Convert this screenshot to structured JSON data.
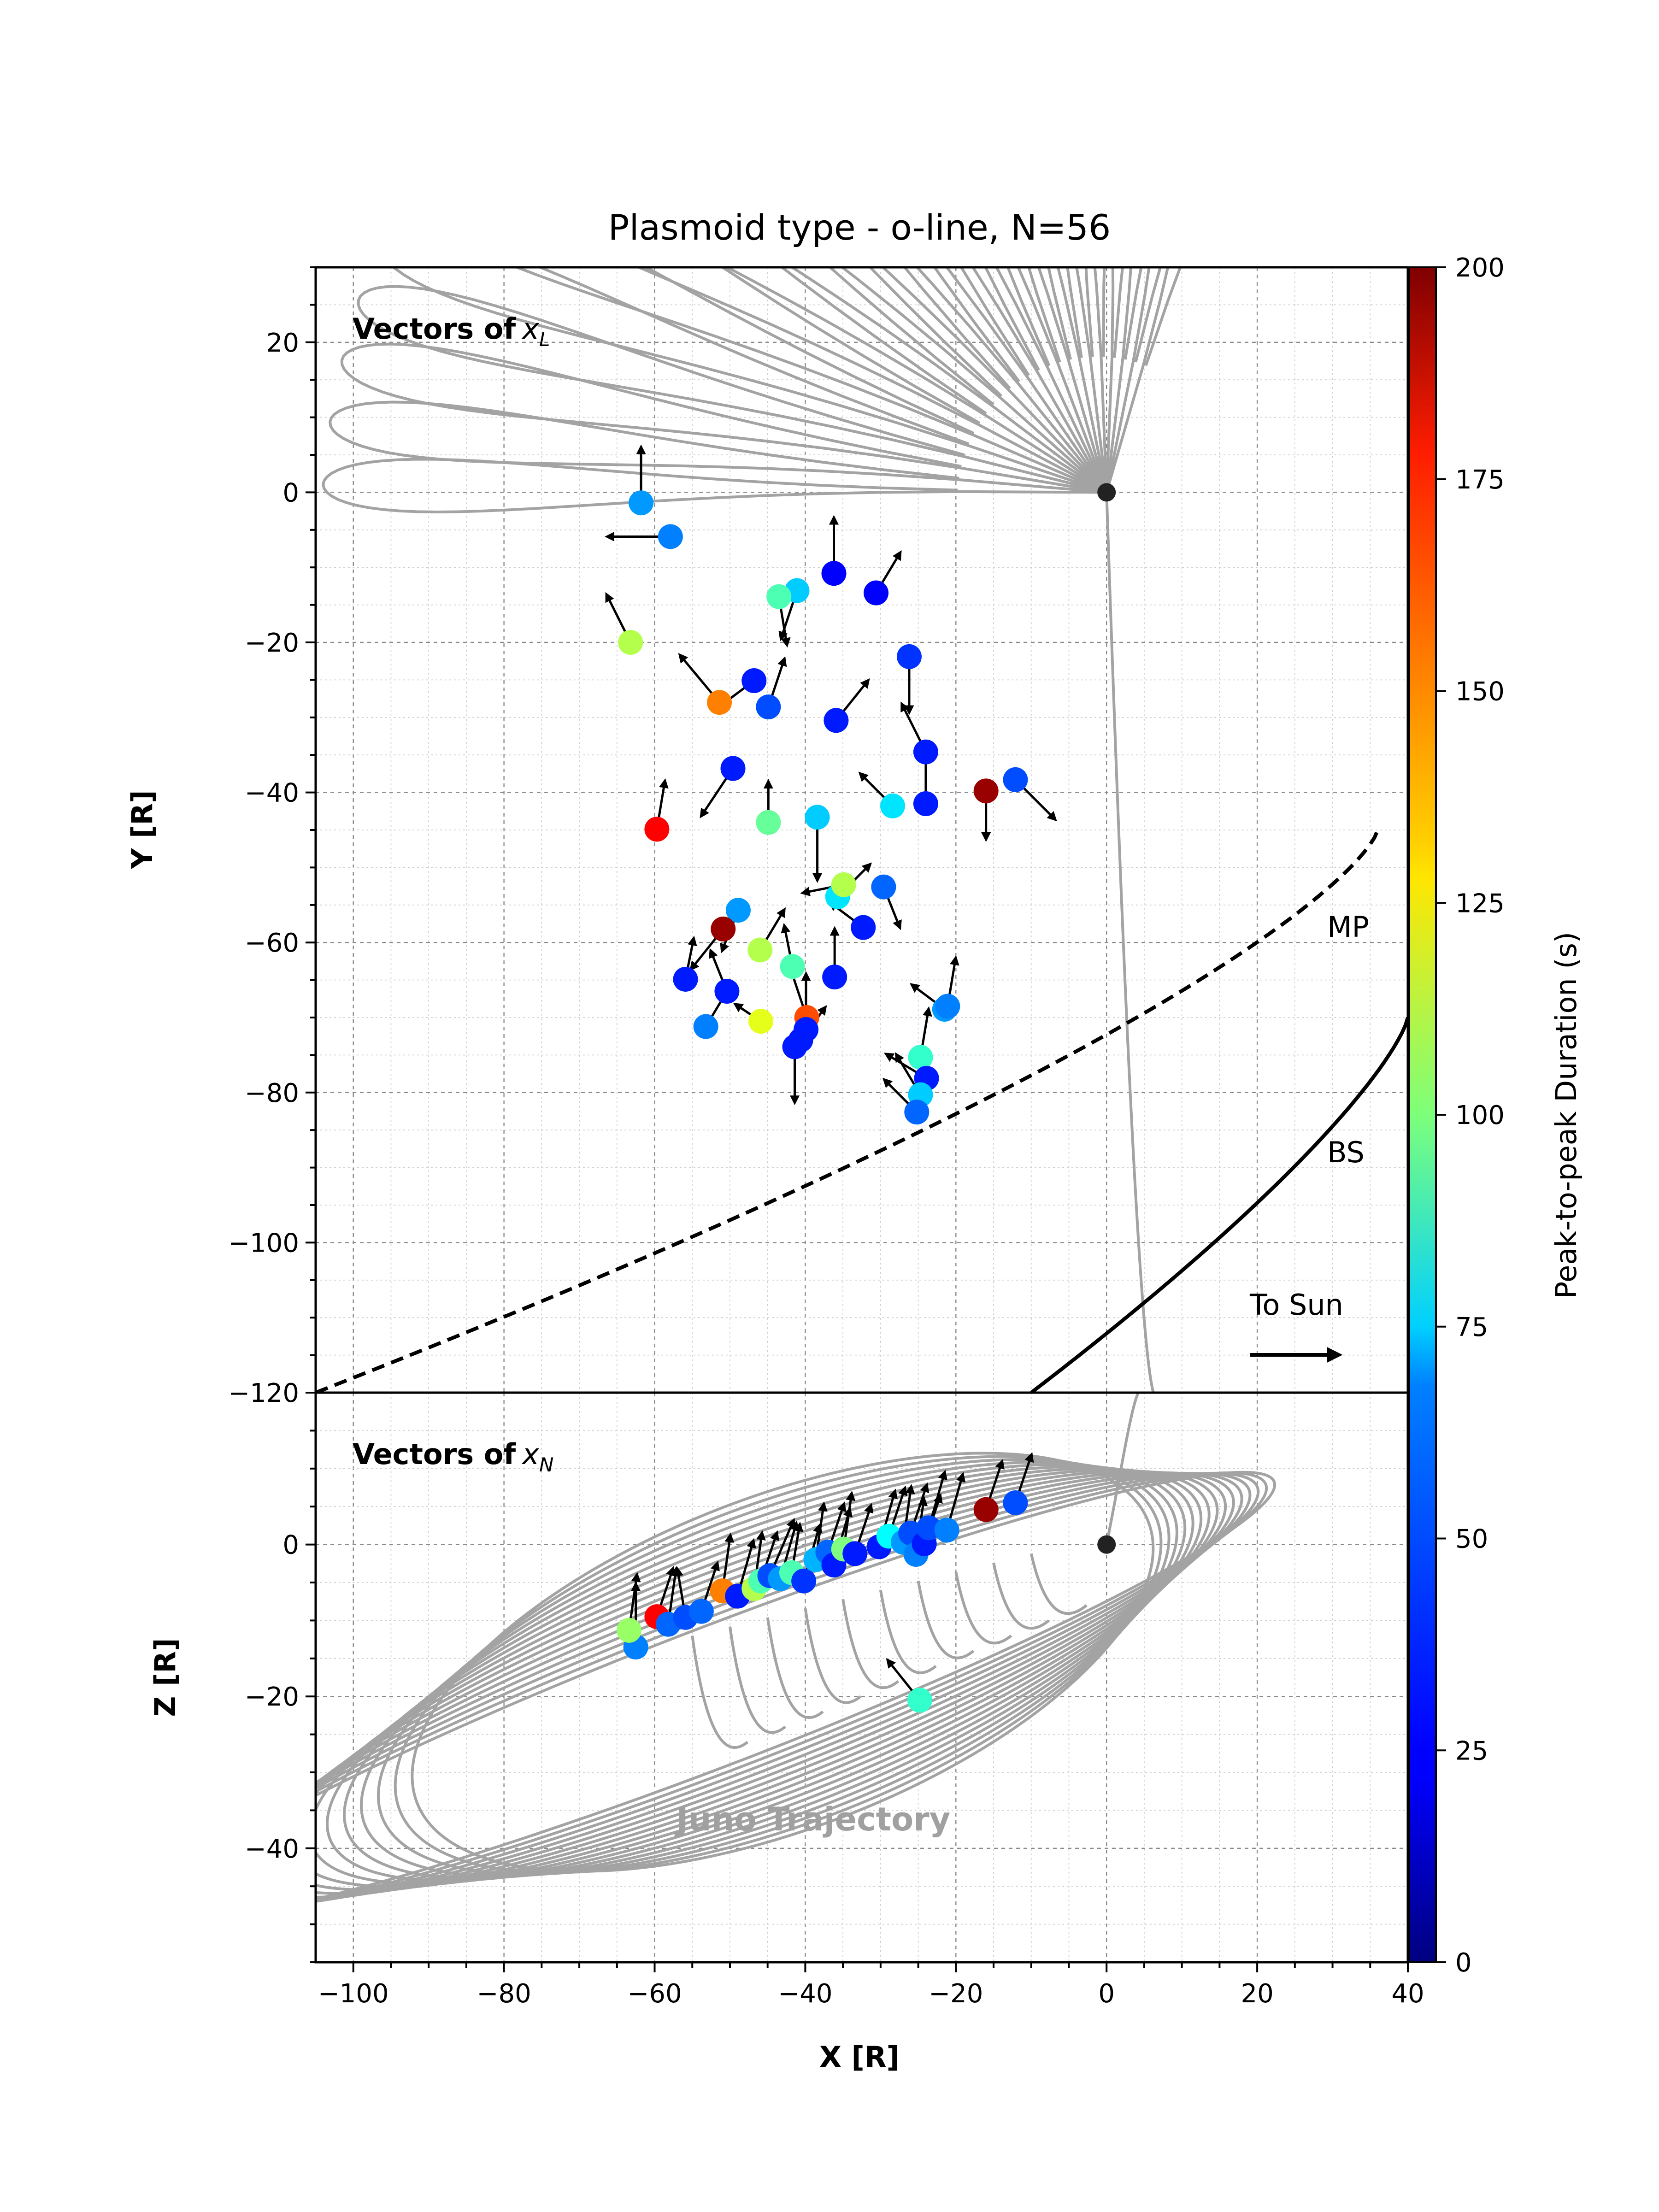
{
  "chart_data": {
    "type": "scatter",
    "title": "Plasmoid type - o-line, N=56",
    "xlabel": "X [R]",
    "x_ticks": [
      "−100",
      "−80",
      "−60",
      "−40",
      "−20",
      "0",
      "20",
      "40"
    ],
    "xlim": [
      -105,
      40
    ],
    "colorbar": {
      "label": "Peak-to-peak Duration (s)",
      "colormap": "jet",
      "range": [
        0,
        200
      ],
      "ticks": [
        "0",
        "25",
        "50",
        "75",
        "100",
        "125",
        "150",
        "175",
        "200"
      ]
    },
    "panels": [
      {
        "name": "top",
        "ylabel": "Y [R]",
        "ylim": [
          -120,
          30
        ],
        "y_ticks": [
          "−120",
          "−100",
          "−80",
          "−60",
          "−40",
          "−20",
          "0",
          "20"
        ],
        "panel_label": "Vectors of",
        "panel_label_symbol": "x",
        "panel_label_sub": "L",
        "annotations": [
          "MP",
          "BS",
          "To Sun"
        ],
        "points": [
          {
            "x": -61.8,
            "y": -1.4,
            "duration": 55,
            "u": 0,
            "v": 7
          },
          {
            "x": -57.9,
            "y": -5.9,
            "duration": 50,
            "u": -8,
            "v": 0
          },
          {
            "x": -36.2,
            "y": -10.8,
            "duration": 25,
            "u": 0,
            "v": 7
          },
          {
            "x": -30.6,
            "y": -13.4,
            "duration": 25,
            "u": 3,
            "v": 5
          },
          {
            "x": -41.1,
            "y": -13.1,
            "duration": 65,
            "u": -2,
            "v": -6
          },
          {
            "x": -43.5,
            "y": -13.9,
            "duration": 90,
            "u": 1,
            "v": -6
          },
          {
            "x": -63.2,
            "y": -20.0,
            "duration": 110,
            "u": -3,
            "v": 6
          },
          {
            "x": -26.2,
            "y": -21.9,
            "duration": 35,
            "u": 0,
            "v": -7
          },
          {
            "x": -46.8,
            "y": -25.1,
            "duration": 30,
            "u": -4,
            "v": -3
          },
          {
            "x": -51.4,
            "y": -28.0,
            "duration": 150,
            "u": -5,
            "v": 6
          },
          {
            "x": -44.9,
            "y": -28.6,
            "duration": 40,
            "u": 2,
            "v": 6
          },
          {
            "x": -35.9,
            "y": -30.4,
            "duration": 30,
            "u": 4,
            "v": 5
          },
          {
            "x": -24.0,
            "y": -34.6,
            "duration": 30,
            "u": -3,
            "v": 6
          },
          {
            "x": -49.6,
            "y": -36.8,
            "duration": 30,
            "u": -4,
            "v": -6
          },
          {
            "x": -16.0,
            "y": -39.8,
            "duration": 195,
            "u": 0,
            "v": -6
          },
          {
            "x": -12.1,
            "y": -38.3,
            "duration": 40,
            "u": 5,
            "v": -5
          },
          {
            "x": -28.4,
            "y": -41.8,
            "duration": 70,
            "u": -4,
            "v": 4
          },
          {
            "x": -24.0,
            "y": -41.5,
            "duration": 30,
            "u": 0,
            "v": 6
          },
          {
            "x": -59.7,
            "y": -44.9,
            "duration": 175,
            "u": 1,
            "v": 6
          },
          {
            "x": -44.9,
            "y": -44.0,
            "duration": 95,
            "u": 0,
            "v": 5
          },
          {
            "x": -38.4,
            "y": -43.3,
            "duration": 65,
            "u": 0,
            "v": -8
          },
          {
            "x": -35.7,
            "y": -53.9,
            "duration": 70,
            "u": 4,
            "v": 4
          },
          {
            "x": -34.9,
            "y": -52.3,
            "duration": 110,
            "u": -5,
            "v": -1
          },
          {
            "x": -29.6,
            "y": -52.6,
            "duration": 45,
            "u": 2,
            "v": -5
          },
          {
            "x": -48.9,
            "y": -55.7,
            "duration": 55,
            "u": -2,
            "v": -5
          },
          {
            "x": -32.3,
            "y": -58.0,
            "duration": 30,
            "u": -4,
            "v": 3
          },
          {
            "x": -50.9,
            "y": -58.2,
            "duration": 195,
            "u": -4,
            "v": -5
          },
          {
            "x": -46.0,
            "y": -61.0,
            "duration": 110,
            "u": 3,
            "v": 5
          },
          {
            "x": -41.7,
            "y": -63.2,
            "duration": 90,
            "u": -1,
            "v": 5
          },
          {
            "x": -36.1,
            "y": -64.6,
            "duration": 30,
            "u": 0,
            "v": 6
          },
          {
            "x": -55.9,
            "y": -64.9,
            "duration": 30,
            "u": 1,
            "v": 5
          },
          {
            "x": -50.4,
            "y": -66.5,
            "duration": 30,
            "u": -2,
            "v": 5
          },
          {
            "x": -21.5,
            "y": -68.9,
            "duration": 55,
            "u": -4,
            "v": 3
          },
          {
            "x": -21.1,
            "y": -68.5,
            "duration": 50,
            "u": 1,
            "v": 6
          },
          {
            "x": -53.2,
            "y": -71.2,
            "duration": 50,
            "u": 3,
            "v": 5
          },
          {
            "x": -39.8,
            "y": -70.0,
            "duration": 160,
            "u": -2,
            "v": 6
          },
          {
            "x": -45.9,
            "y": -70.5,
            "duration": 120,
            "u": -3,
            "v": 2
          },
          {
            "x": -39.9,
            "y": -71.6,
            "duration": 30,
            "u": 0,
            "v": 7
          },
          {
            "x": -40.6,
            "y": -73.0,
            "duration": 30,
            "u": 3,
            "v": 4
          },
          {
            "x": -41.4,
            "y": -73.9,
            "duration": 30,
            "u": 0,
            "v": -7
          },
          {
            "x": -24.7,
            "y": -75.3,
            "duration": 85,
            "u": 1,
            "v": 6
          },
          {
            "x": -23.9,
            "y": -78.1,
            "duration": 30,
            "u": -5,
            "v": 3
          },
          {
            "x": -24.7,
            "y": -80.3,
            "duration": 65,
            "u": -3,
            "v": 5
          },
          {
            "x": -25.2,
            "y": -82.6,
            "duration": 45,
            "u": -4,
            "v": 4
          }
        ]
      },
      {
        "name": "bottom",
        "ylabel": "Z [R]",
        "ylim": [
          -55,
          20
        ],
        "y_ticks": [
          "−40",
          "−20",
          "0"
        ],
        "panel_label": "Vectors of",
        "panel_label_symbol": "x",
        "panel_label_sub": "N",
        "watermark": "Juno Trajectory",
        "points": [
          {
            "x": -62.5,
            "y": -13.5,
            "duration": 50,
            "u": 0,
            "v": 8
          },
          {
            "x": -63.4,
            "y": -11.3,
            "duration": 105,
            "u": 1,
            "v": 7
          },
          {
            "x": -59.7,
            "y": -9.5,
            "duration": 175,
            "u": 2,
            "v": 6
          },
          {
            "x": -58.2,
            "y": -10.5,
            "duration": 45,
            "u": 1,
            "v": 7
          },
          {
            "x": -55.9,
            "y": -9.6,
            "duration": 40,
            "u": -1,
            "v": 6
          },
          {
            "x": -53.8,
            "y": -8.8,
            "duration": 45,
            "u": 2,
            "v": 6
          },
          {
            "x": -51.0,
            "y": -6.1,
            "duration": 150,
            "u": 1,
            "v": 7
          },
          {
            "x": -49.0,
            "y": -6.8,
            "duration": 30,
            "u": 2,
            "v": 7
          },
          {
            "x": -46.8,
            "y": -5.8,
            "duration": 110,
            "u": 1,
            "v": 7
          },
          {
            "x": -45.9,
            "y": -4.8,
            "duration": 90,
            "u": 2,
            "v": 6
          },
          {
            "x": -44.7,
            "y": -4.1,
            "duration": 40,
            "u": 3,
            "v": 7
          },
          {
            "x": -43.3,
            "y": -4.5,
            "duration": 55,
            "u": 2,
            "v": 7
          },
          {
            "x": -41.8,
            "y": -3.7,
            "duration": 90,
            "u": 1,
            "v": 6
          },
          {
            "x": -40.2,
            "y": -4.8,
            "duration": 35,
            "u": 2,
            "v": 7
          },
          {
            "x": -38.6,
            "y": -2.0,
            "duration": 60,
            "u": 1,
            "v": 7
          },
          {
            "x": -37.0,
            "y": -1.0,
            "duration": 45,
            "u": 2,
            "v": 6
          },
          {
            "x": -36.2,
            "y": -2.7,
            "duration": 30,
            "u": 2,
            "v": 7
          },
          {
            "x": -34.9,
            "y": -0.6,
            "duration": 100,
            "u": 1,
            "v": 7
          },
          {
            "x": -33.4,
            "y": -1.2,
            "duration": 30,
            "u": 2,
            "v": 6
          },
          {
            "x": -30.2,
            "y": -0.3,
            "duration": 30,
            "u": 2,
            "v": 7
          },
          {
            "x": -28.9,
            "y": 1.1,
            "duration": 75,
            "u": 2,
            "v": 6
          },
          {
            "x": -27.0,
            "y": 0.3,
            "duration": 55,
            "u": 1,
            "v": 7
          },
          {
            "x": -26.0,
            "y": 1.5,
            "duration": 40,
            "u": 2,
            "v": 6
          },
          {
            "x": -25.3,
            "y": -1.3,
            "duration": 50,
            "u": 1,
            "v": 7
          },
          {
            "x": -24.2,
            "y": 0.1,
            "duration": 30,
            "u": 2,
            "v": 6
          },
          {
            "x": -23.6,
            "y": 2.2,
            "duration": 40,
            "u": 2,
            "v": 7
          },
          {
            "x": -21.2,
            "y": 1.9,
            "duration": 50,
            "u": 2,
            "v": 7
          },
          {
            "x": -16.0,
            "y": 4.6,
            "duration": 195,
            "u": 2,
            "v": 6
          },
          {
            "x": -12.1,
            "y": 5.5,
            "duration": 40,
            "u": 2,
            "v": 6
          },
          {
            "x": -24.8,
            "y": -20.5,
            "duration": 85,
            "u": -4,
            "v": 5
          }
        ]
      }
    ]
  }
}
